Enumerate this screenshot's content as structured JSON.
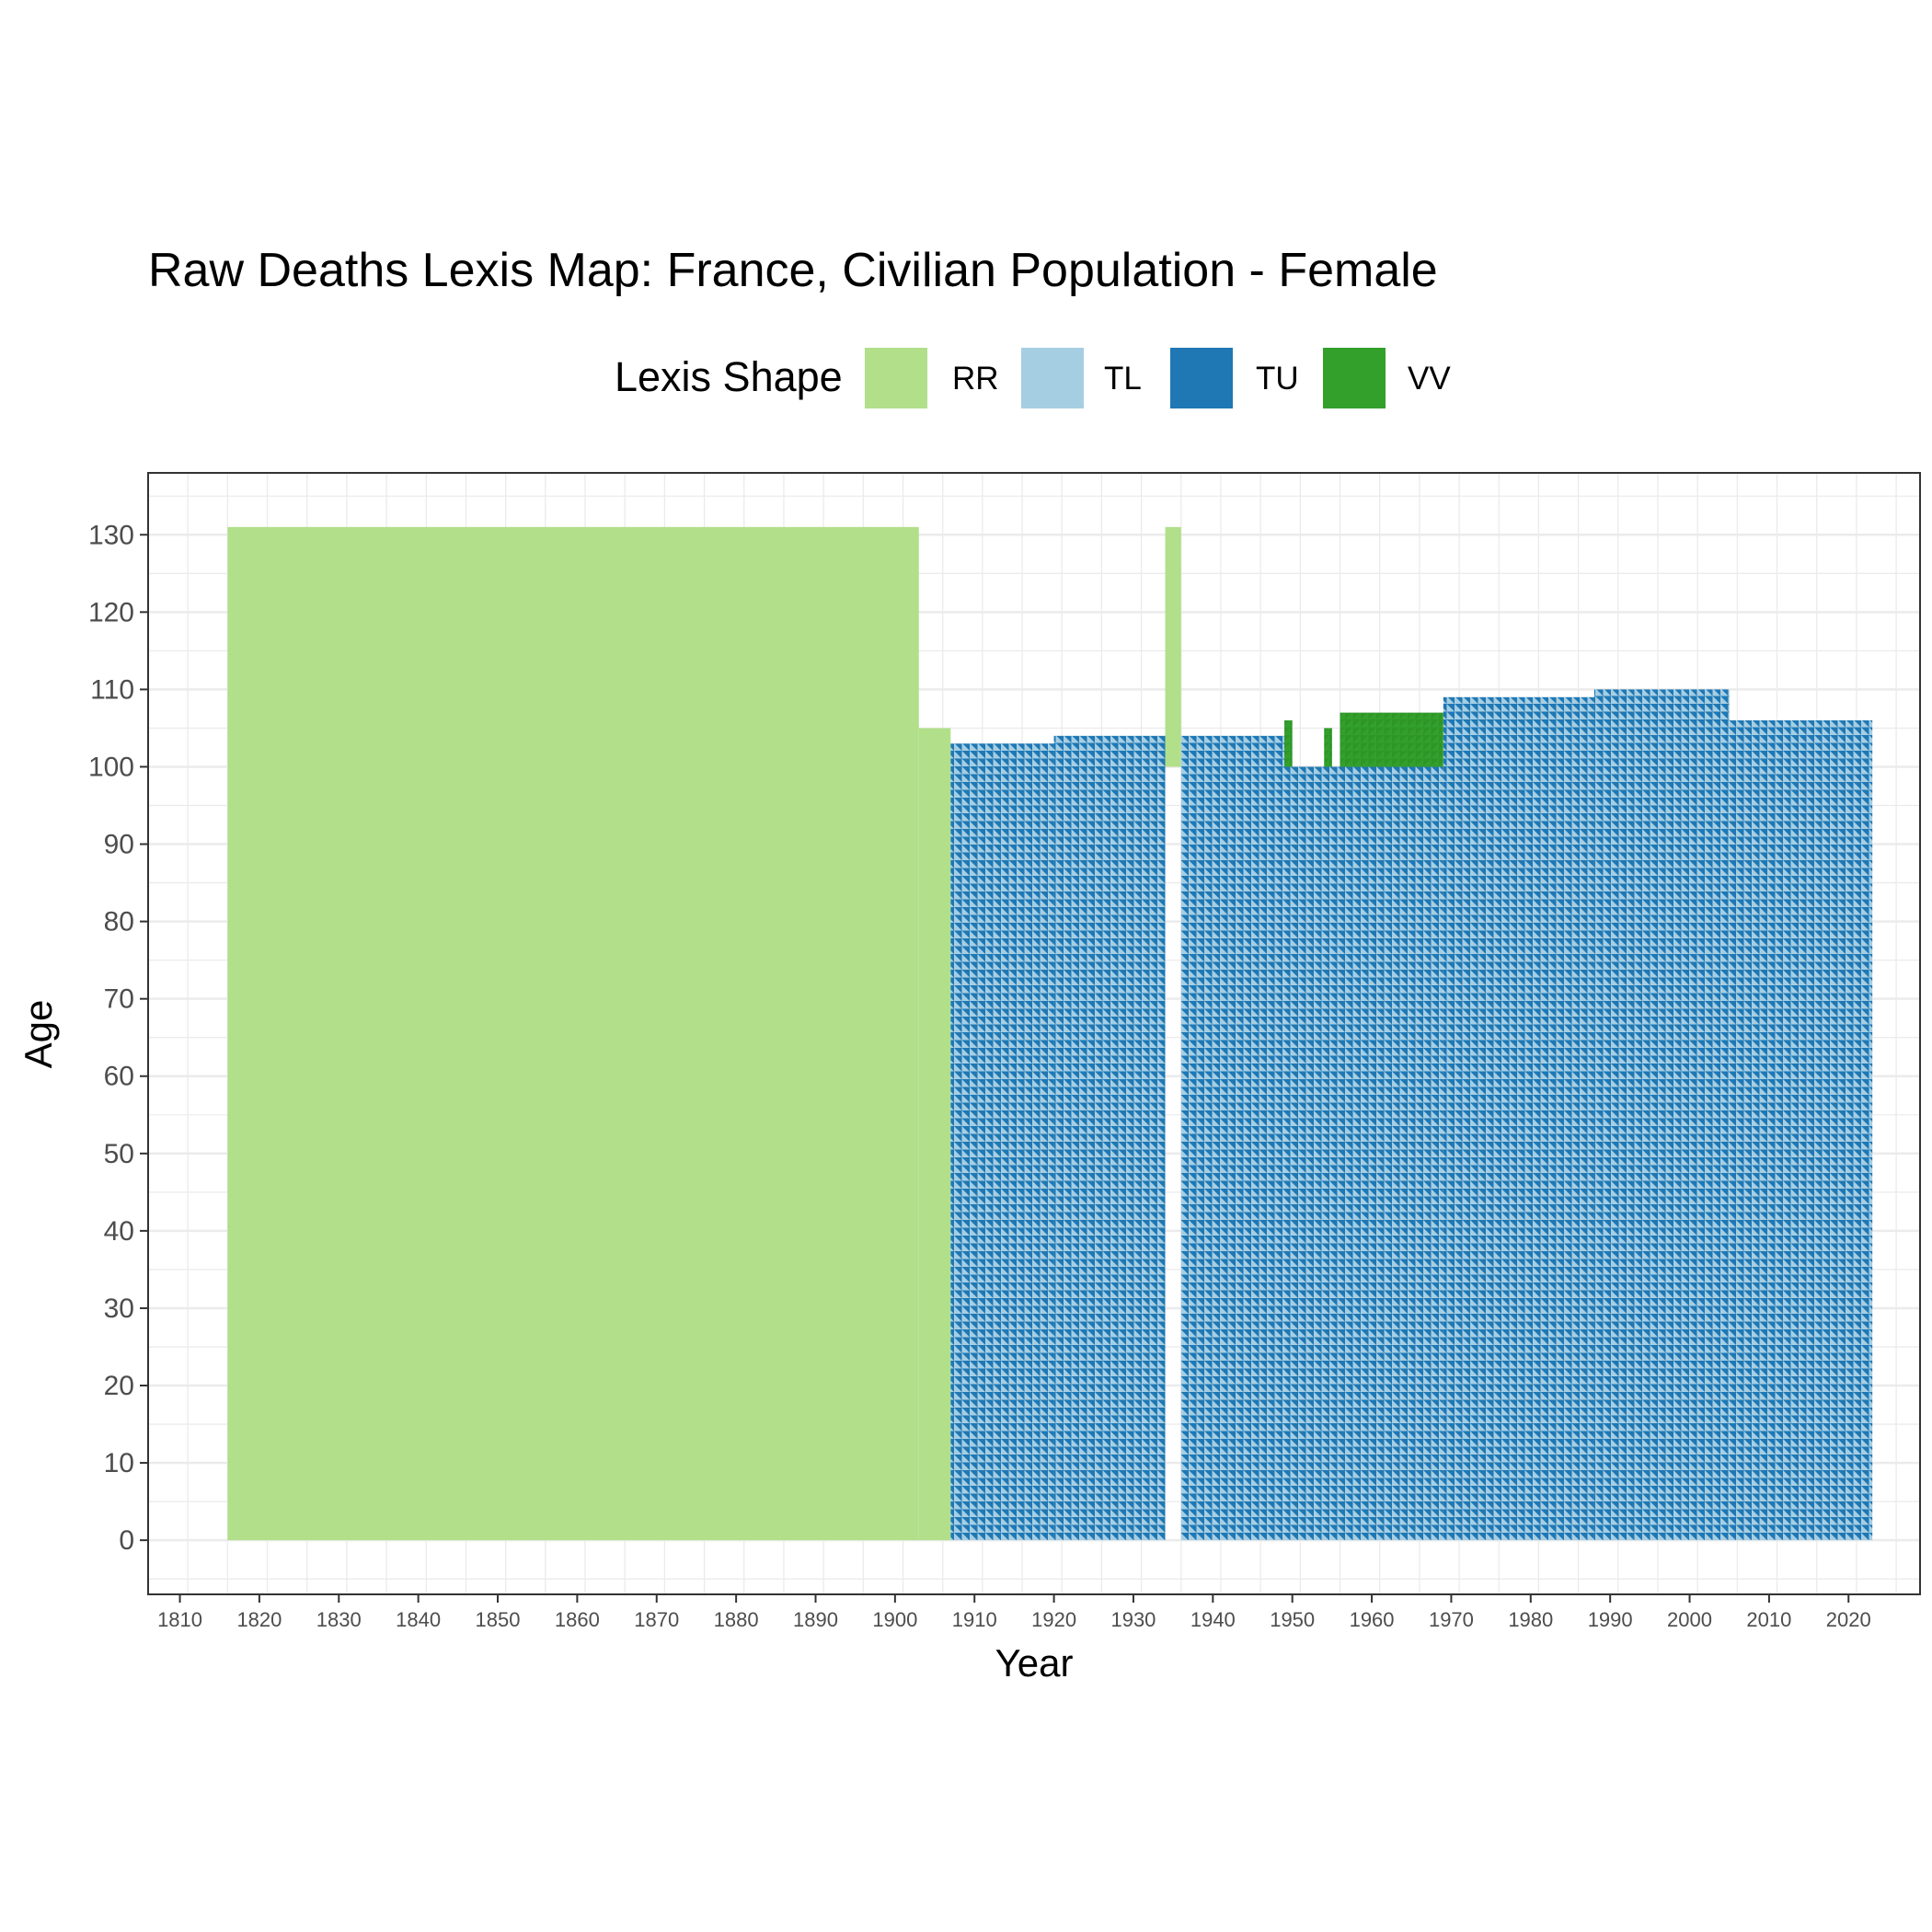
{
  "chart_data": {
    "type": "heatmap",
    "title": "Raw Deaths Lexis Map: France, Civilian Population - Female",
    "xlabel": "Year",
    "ylabel": "Age",
    "xlim": [
      1806,
      2029
    ],
    "ylim": [
      -7,
      138
    ],
    "x_ticks": [
      1810,
      1820,
      1830,
      1840,
      1850,
      1860,
      1870,
      1880,
      1890,
      1900,
      1910,
      1920,
      1930,
      1940,
      1950,
      1960,
      1970,
      1980,
      1990,
      2000,
      2010,
      2020
    ],
    "y_ticks": [
      0,
      10,
      20,
      30,
      40,
      50,
      60,
      70,
      80,
      90,
      100,
      110,
      120,
      130
    ],
    "grid": true,
    "legend": {
      "title": "Lexis Shape",
      "placement": "top",
      "entries": [
        {
          "label": "RR",
          "color": "#b2df8a"
        },
        {
          "label": "TL",
          "color": "#a6cee3"
        },
        {
          "label": "TU",
          "color": "#1f78b4"
        },
        {
          "label": "VV",
          "color": "#33a02c"
        }
      ]
    },
    "regions": [
      {
        "shape": "RR",
        "year_start": 1816,
        "year_end": 1903,
        "age_start": 0,
        "age_end": 131
      },
      {
        "shape": "RR",
        "year_start": 1903,
        "year_end": 1907,
        "age_start": 0,
        "age_end": 105
      },
      {
        "shape": "RR",
        "year_start": 1934,
        "year_end": 1936,
        "age_start": 100,
        "age_end": 131
      },
      {
        "shape": "TL/TU",
        "year_start": 1907,
        "year_end": 1920,
        "age_start": 0,
        "age_end": 103
      },
      {
        "shape": "TL/TU",
        "year_start": 1920,
        "year_end": 1934,
        "age_start": 0,
        "age_end": 104
      },
      {
        "shape": "TL/TU",
        "year_start": 1936,
        "year_end": 1949,
        "age_start": 0,
        "age_end": 104
      },
      {
        "shape": "TL/TU",
        "year_start": 1949,
        "year_end": 1969,
        "age_start": 0,
        "age_end": 100
      },
      {
        "shape": "TL/TU",
        "year_start": 1969,
        "year_end": 1988,
        "age_start": 0,
        "age_end": 109
      },
      {
        "shape": "TL/TU",
        "year_start": 1988,
        "year_end": 2005,
        "age_start": 0,
        "age_end": 110
      },
      {
        "shape": "TL/TU",
        "year_start": 2005,
        "year_end": 2023,
        "age_start": 0,
        "age_end": 106
      },
      {
        "shape": "VV",
        "year_start": 1956,
        "year_end": 1969,
        "age_start": 100,
        "age_end": 107
      },
      {
        "shape": "VV",
        "year_start": 1949,
        "year_end": 1950,
        "age_start": 100,
        "age_end": 106
      },
      {
        "shape": "VV",
        "year_start": 1954,
        "year_end": 1955,
        "age_start": 100,
        "age_end": 105
      }
    ]
  }
}
